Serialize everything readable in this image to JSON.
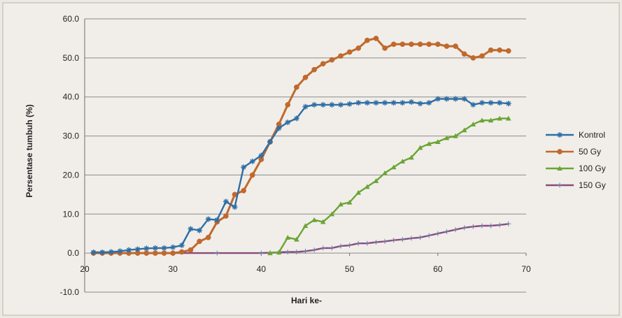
{
  "chart_data": {
    "type": "line",
    "title": "",
    "xlabel": "Hari ke-",
    "ylabel": "Persentase tumbuh (%)",
    "xlim": [
      20,
      70
    ],
    "ylim": [
      -10,
      60
    ],
    "x_ticks": [
      "20",
      "30",
      "40",
      "50",
      "60",
      "70"
    ],
    "y_ticks": [
      "-10.0",
      "0.0",
      "10.0",
      "20.0",
      "30.0",
      "40.0",
      "50.0",
      "60.0"
    ],
    "grid": "horizontal",
    "legend_position": "right",
    "series": [
      {
        "name": "Kontrol",
        "color": "#2e6ea6",
        "marker": "star",
        "points": [
          [
            21,
            0.2
          ],
          [
            22,
            0.2
          ],
          [
            23,
            0.3
          ],
          [
            24,
            0.5
          ],
          [
            25,
            0.8
          ],
          [
            26,
            1.0
          ],
          [
            27,
            1.2
          ],
          [
            28,
            1.3
          ],
          [
            29,
            1.3
          ],
          [
            30,
            1.5
          ],
          [
            31,
            2.0
          ],
          [
            32,
            6.2
          ],
          [
            33,
            5.8
          ],
          [
            34,
            8.7
          ],
          [
            35,
            8.5
          ],
          [
            36,
            13.2
          ],
          [
            37,
            11.8
          ],
          [
            38,
            22.0
          ],
          [
            39,
            23.5
          ],
          [
            40,
            25.0
          ],
          [
            41,
            28.5
          ],
          [
            42,
            32.0
          ],
          [
            43,
            33.5
          ],
          [
            44,
            34.5
          ],
          [
            45,
            37.5
          ],
          [
            46,
            38.0
          ],
          [
            47,
            38.0
          ],
          [
            48,
            38.0
          ],
          [
            49,
            38.0
          ],
          [
            50,
            38.2
          ],
          [
            51,
            38.5
          ],
          [
            52,
            38.5
          ],
          [
            53,
            38.5
          ],
          [
            54,
            38.5
          ],
          [
            55,
            38.5
          ],
          [
            56,
            38.5
          ],
          [
            57,
            38.7
          ],
          [
            58,
            38.3
          ],
          [
            59,
            38.5
          ],
          [
            60,
            39.5
          ],
          [
            61,
            39.5
          ],
          [
            62,
            39.5
          ],
          [
            63,
            39.5
          ],
          [
            64,
            38.0
          ],
          [
            65,
            38.5
          ],
          [
            66,
            38.5
          ],
          [
            67,
            38.5
          ],
          [
            68,
            38.3
          ]
        ]
      },
      {
        "name": "50 Gy",
        "color": "#c0692d",
        "marker": "circle",
        "points": [
          [
            21,
            0
          ],
          [
            22,
            0
          ],
          [
            23,
            0
          ],
          [
            24,
            0
          ],
          [
            25,
            0
          ],
          [
            26,
            0
          ],
          [
            27,
            0
          ],
          [
            28,
            0
          ],
          [
            29,
            0
          ],
          [
            30,
            0
          ],
          [
            31,
            0.3
          ],
          [
            32,
            0.8
          ],
          [
            33,
            3.0
          ],
          [
            34,
            4.0
          ],
          [
            35,
            8.0
          ],
          [
            36,
            9.5
          ],
          [
            37,
            15.0
          ],
          [
            38,
            16.0
          ],
          [
            39,
            20.0
          ],
          [
            40,
            24.0
          ],
          [
            41,
            28.5
          ],
          [
            42,
            33.0
          ],
          [
            43,
            38.0
          ],
          [
            44,
            42.5
          ],
          [
            45,
            45.0
          ],
          [
            46,
            47.0
          ],
          [
            47,
            48.5
          ],
          [
            48,
            49.5
          ],
          [
            49,
            50.5
          ],
          [
            50,
            51.5
          ],
          [
            51,
            52.5
          ],
          [
            52,
            54.5
          ],
          [
            53,
            55.0
          ],
          [
            54,
            52.5
          ],
          [
            55,
            53.5
          ],
          [
            56,
            53.5
          ],
          [
            57,
            53.5
          ],
          [
            58,
            53.5
          ],
          [
            59,
            53.5
          ],
          [
            60,
            53.5
          ],
          [
            61,
            53.0
          ],
          [
            62,
            53.0
          ],
          [
            63,
            51.0
          ],
          [
            64,
            50.0
          ],
          [
            65,
            50.5
          ],
          [
            66,
            52.0
          ],
          [
            67,
            52.0
          ],
          [
            68,
            51.8
          ]
        ]
      },
      {
        "name": "100 Gy",
        "color": "#6aa535",
        "marker": "triangle",
        "points": [
          [
            41,
            0
          ],
          [
            42,
            0.2
          ],
          [
            43,
            4.0
          ],
          [
            44,
            3.5
          ],
          [
            45,
            7.0
          ],
          [
            46,
            8.5
          ],
          [
            47,
            8.0
          ],
          [
            48,
            10.0
          ],
          [
            49,
            12.5
          ],
          [
            50,
            13.0
          ],
          [
            51,
            15.5
          ],
          [
            52,
            17.0
          ],
          [
            53,
            18.5
          ],
          [
            54,
            20.5
          ],
          [
            55,
            22.0
          ],
          [
            56,
            23.5
          ],
          [
            57,
            24.5
          ],
          [
            58,
            27.0
          ],
          [
            59,
            28.0
          ],
          [
            60,
            28.5
          ],
          [
            61,
            29.5
          ],
          [
            62,
            30.0
          ],
          [
            63,
            31.5
          ],
          [
            64,
            33.0
          ],
          [
            65,
            34.0
          ],
          [
            66,
            34.0
          ],
          [
            67,
            34.5
          ],
          [
            68,
            34.5
          ]
        ]
      },
      {
        "name": "150 Gy",
        "color": "#8a4a7a",
        "marker": "plus",
        "points": [
          [
            21,
            0
          ],
          [
            25,
            0
          ],
          [
            30,
            0
          ],
          [
            35,
            0
          ],
          [
            40,
            0
          ],
          [
            41,
            0.1
          ],
          [
            42,
            0.2
          ],
          [
            43,
            0.3
          ],
          [
            44,
            0.3
          ],
          [
            45,
            0.5
          ],
          [
            46,
            0.8
          ],
          [
            47,
            1.3
          ],
          [
            48,
            1.3
          ],
          [
            49,
            1.8
          ],
          [
            50,
            2.0
          ],
          [
            51,
            2.5
          ],
          [
            52,
            2.5
          ],
          [
            53,
            2.8
          ],
          [
            54,
            3.0
          ],
          [
            55,
            3.3
          ],
          [
            56,
            3.5
          ],
          [
            57,
            3.8
          ],
          [
            58,
            4.0
          ],
          [
            59,
            4.5
          ],
          [
            60,
            5.0
          ],
          [
            61,
            5.5
          ],
          [
            62,
            6.0
          ],
          [
            63,
            6.5
          ],
          [
            64,
            6.8
          ],
          [
            65,
            7.0
          ],
          [
            66,
            7.0
          ],
          [
            67,
            7.2
          ],
          [
            68,
            7.5
          ]
        ]
      }
    ]
  }
}
